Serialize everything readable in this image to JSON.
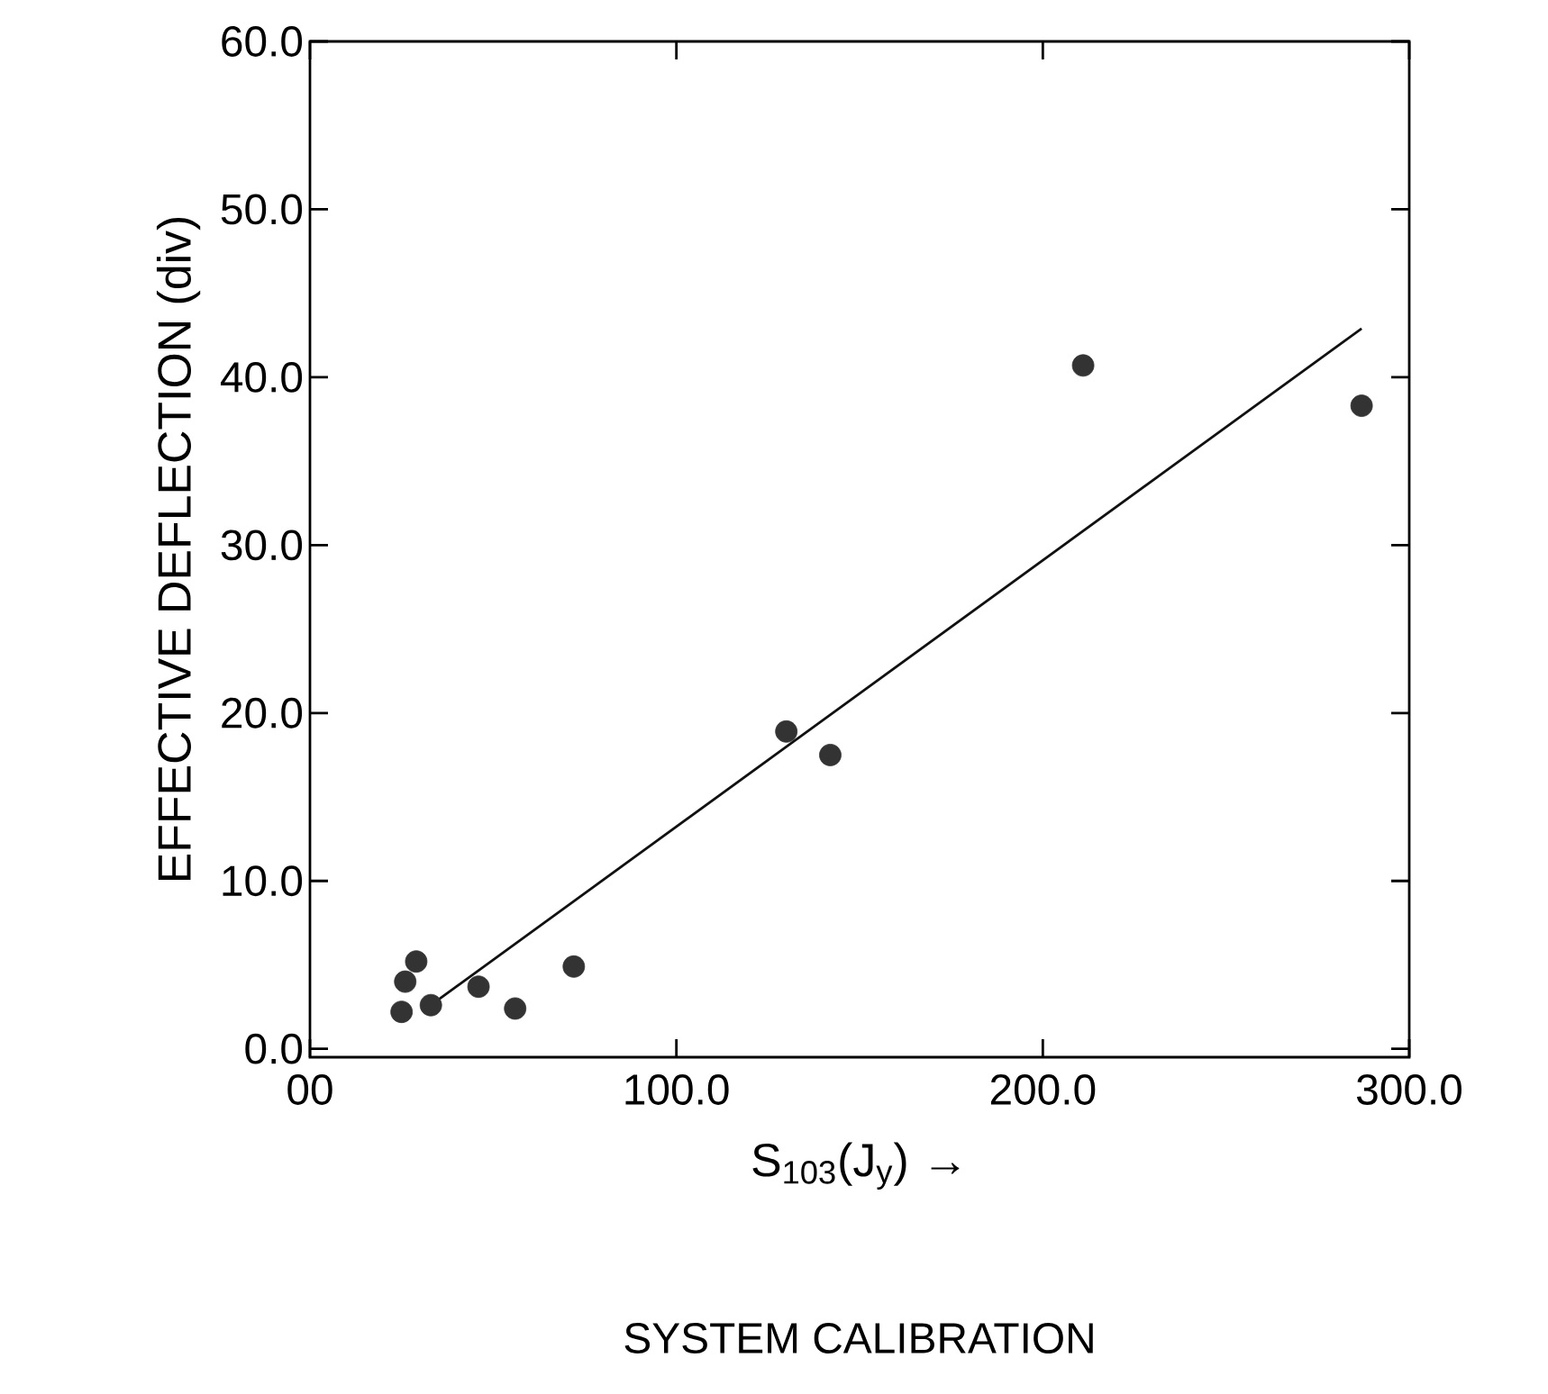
{
  "chart_data": {
    "type": "scatter",
    "title": "SYSTEM CALIBRATION",
    "xlabel": "S$_{103}$(J$_{y}$) →",
    "ylabel": "EFFECTIVE DEFLECTION (div)",
    "xlim": [
      0,
      300
    ],
    "ylim": [
      -0.5,
      60
    ],
    "xticks": [
      {
        "value": 0,
        "label": "00"
      },
      {
        "value": 100,
        "label": "100.0"
      },
      {
        "value": 200,
        "label": "200.0"
      },
      {
        "value": 300,
        "label": "300.0"
      }
    ],
    "yticks": [
      {
        "value": 0,
        "label": "0.0"
      },
      {
        "value": 10,
        "label": "10.0"
      },
      {
        "value": 20,
        "label": "20.0"
      },
      {
        "value": 30,
        "label": "30.0"
      },
      {
        "value": 40,
        "label": "40.0"
      },
      {
        "value": 50,
        "label": "50.0"
      },
      {
        "value": 60,
        "label": "60.0"
      }
    ],
    "grid": false,
    "marker": "circle",
    "series": [
      {
        "color": "#333333",
        "x": [
          25,
          26,
          29,
          33,
          46,
          56,
          72,
          130,
          142,
          211,
          287
        ],
        "values": [
          2.2,
          4.0,
          5.2,
          2.6,
          3.7,
          2.4,
          4.9,
          18.9,
          17.5,
          40.7,
          38.3
        ]
      },
      {
        "type": "line",
        "color": "#111111",
        "marker": "none",
        "x": [
          33,
          287
        ],
        "values": [
          2.6,
          42.9
        ]
      }
    ]
  }
}
